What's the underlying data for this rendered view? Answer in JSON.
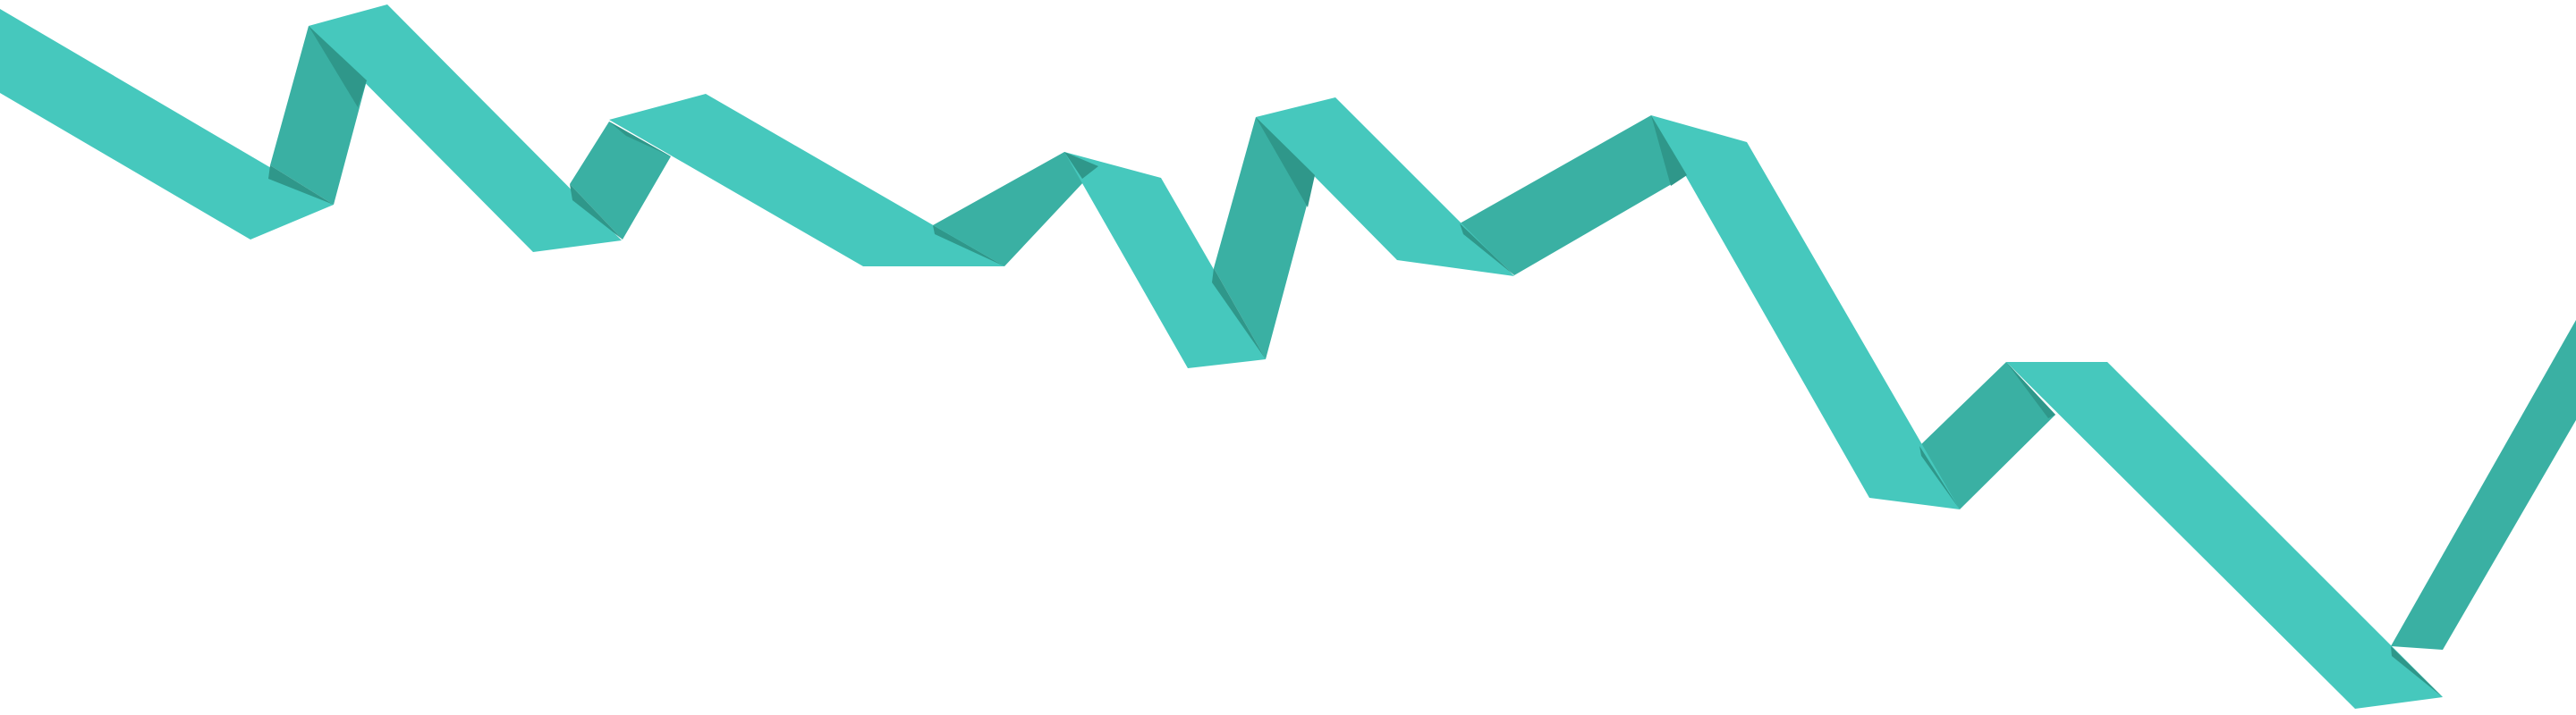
{
  "graphic": {
    "kind": "folded-ribbon-zigzag-divider",
    "colors": {
      "background": "#ffffff",
      "ribbon_front": "#46C8BD",
      "ribbon_back": "#3AB0A3",
      "ribbon_fold": "#2F978A"
    }
  }
}
